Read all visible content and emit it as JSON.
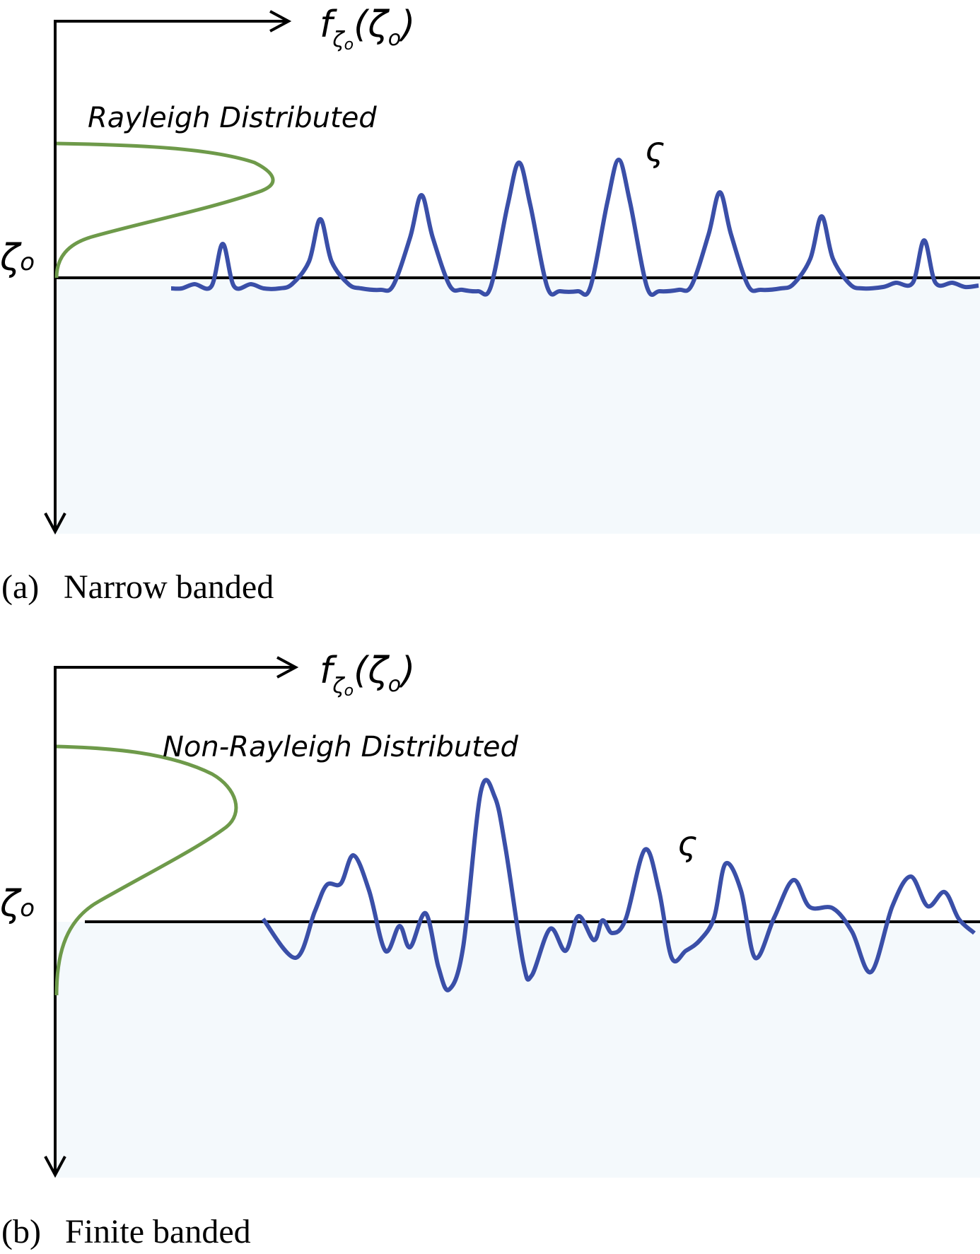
{
  "panels": [
    {
      "id": "a",
      "axis_symbol": "ζ",
      "axis_subscript": "o",
      "density_f": "f",
      "density_sub_zeta": "ζ",
      "density_sub_o": "o",
      "density_arg_zeta": "(ζ",
      "density_arg_o": "o",
      "density_arg_close": ")",
      "distribution_label": "Rayleigh Distributed",
      "wave_symbol": "ς",
      "caption_tag": "(a)",
      "caption_text": "Narrow  banded"
    },
    {
      "id": "b",
      "axis_symbol": "ζ",
      "axis_subscript": "o",
      "density_f": "f",
      "density_sub_zeta": "ζ",
      "density_sub_o": "o",
      "density_arg_zeta": "(ζ",
      "density_arg_o": "o",
      "density_arg_close": ")",
      "distribution_label": "Non-Rayleigh Distributed",
      "wave_symbol": "ς",
      "caption_tag": "(b)",
      "caption_text": "Finite  banded"
    }
  ],
  "colors": {
    "density_curve": "#6e9a4a",
    "wave": "#3a4fa8",
    "axes": "#000000",
    "background_region": "#f4f9fc"
  }
}
